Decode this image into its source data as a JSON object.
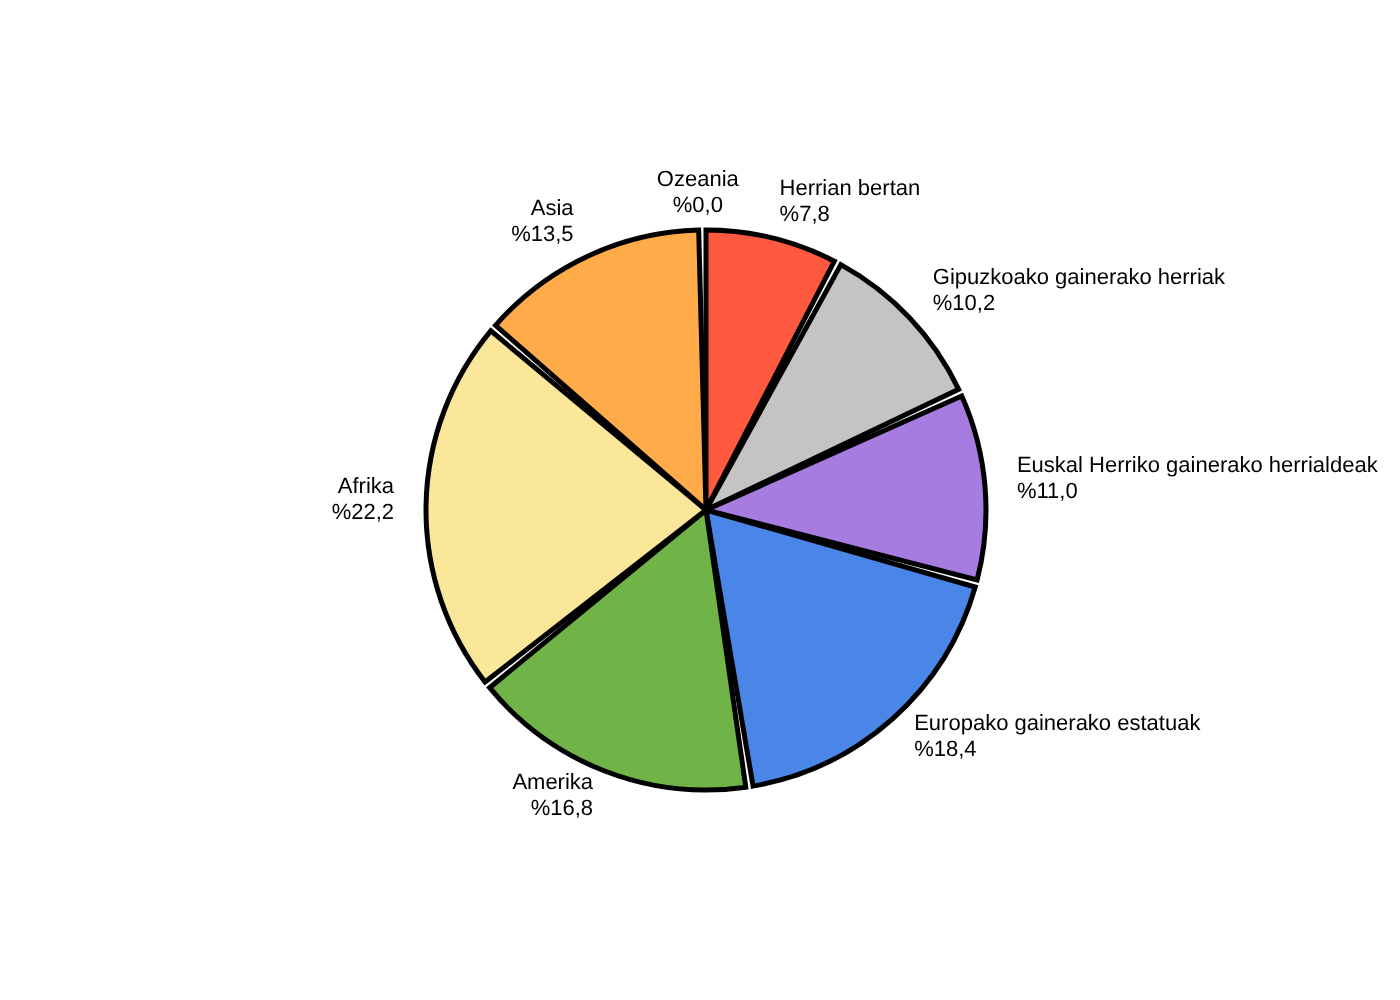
{
  "chart_data": {
    "type": "pie",
    "categories": [
      "Herrian bertan",
      "Gipuzkoako gainerako herriak",
      "Euskal Herriko gainerako herrialdeak",
      "Europako gainerako estatuak",
      "Amerika",
      "Afrika",
      "Asia",
      "Ozeania"
    ],
    "values": [
      7.8,
      10.2,
      11.0,
      18.4,
      16.8,
      22.2,
      13.5,
      0.0
    ],
    "value_labels": [
      "%7,8",
      "%10,2",
      "%11,0",
      "%18,4",
      "%16,8",
      "%22,2",
      "%13,5",
      "%0,0"
    ],
    "colors": [
      "#ff5a40",
      "#c4c4c4",
      "#a77ce0",
      "#4a86e8",
      "#70b347",
      "#fbe79a",
      "#ffab4a",
      "#e04a30"
    ],
    "legend": false
  }
}
